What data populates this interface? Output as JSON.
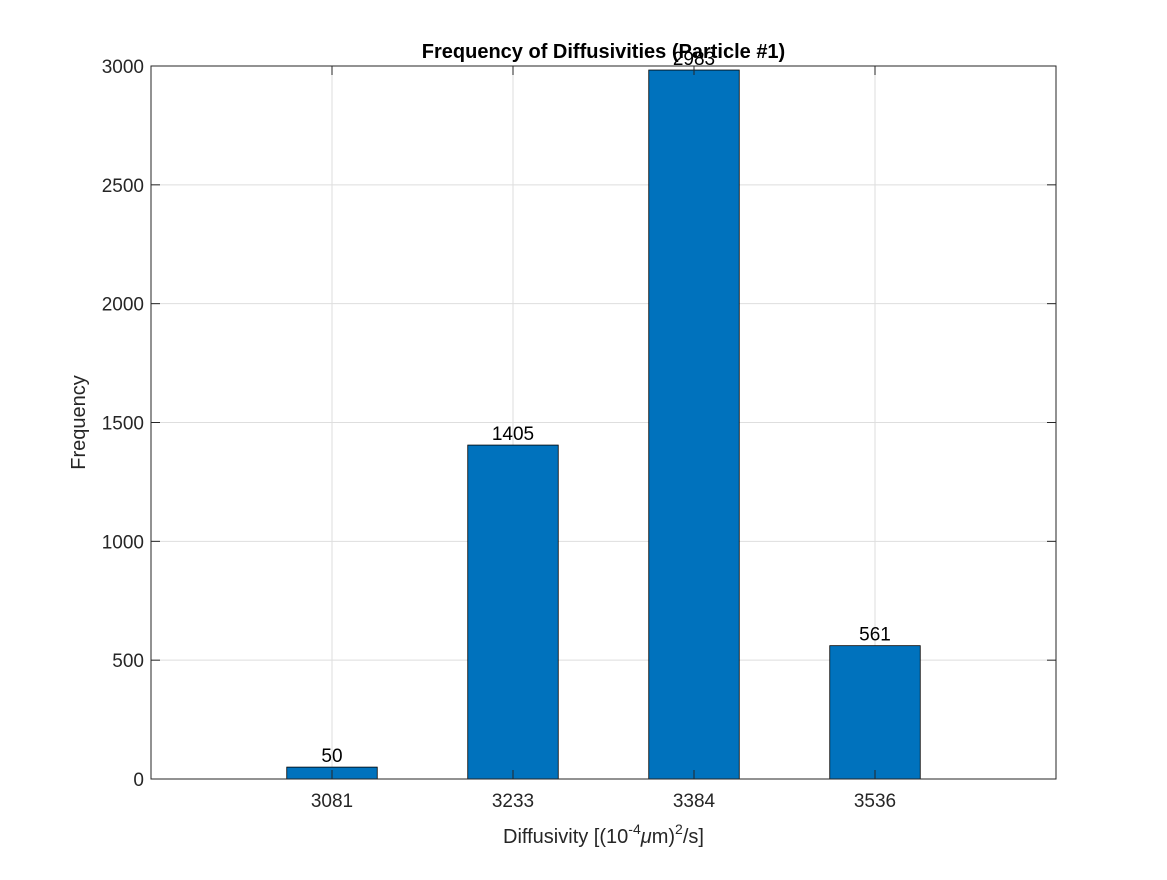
{
  "chart_data": {
    "type": "bar",
    "title": "Frequency of Diffusivities (Particle #1)",
    "xlabel": {
      "prefix": "Diffusivity [(10",
      "exponent1": "-4",
      "mu": "μ",
      "unit": "m)",
      "exponent2": "2",
      "suffix": "/s]"
    },
    "ylabel": "Frequency",
    "categories": [
      "3081",
      "3233",
      "3384",
      "3536"
    ],
    "values": [
      50,
      1405,
      2983,
      561
    ],
    "data_labels": [
      "50",
      "1405",
      "2983",
      "561"
    ],
    "yticks": [
      0,
      500,
      1000,
      1500,
      2000,
      2500,
      3000
    ],
    "ylim": [
      0,
      3000
    ],
    "grid": true,
    "bar_color": "#0072BD",
    "bar_edge_color": "#000000"
  }
}
